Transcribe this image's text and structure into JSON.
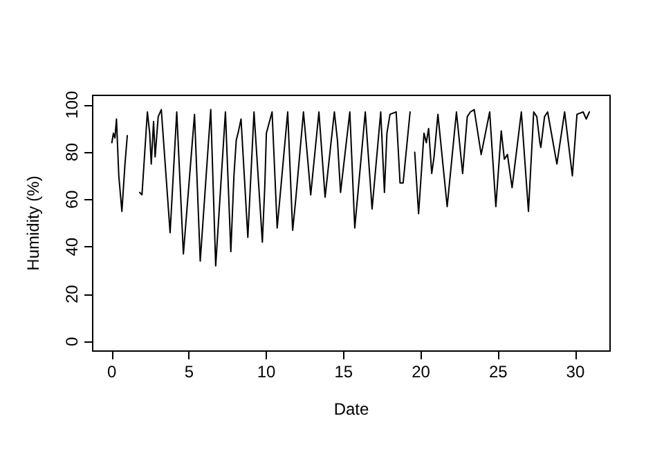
{
  "chart_data": {
    "type": "line",
    "xlabel": "Date",
    "ylabel": "Humidity (%)",
    "xlim": [
      -1.24,
      32.24
    ],
    "ylim": [
      -4,
      104
    ],
    "xticks": [
      0,
      5,
      10,
      15,
      20,
      25,
      30
    ],
    "yticks": [
      0,
      20,
      40,
      60,
      80,
      100
    ],
    "grid": false,
    "marker": "none",
    "line_style": "solid",
    "series": [
      {
        "color": "#000000",
        "x": [
          0,
          0.1,
          0.2,
          0.3,
          0.45,
          0.65,
          0.85,
          1.0,
          1.4,
          1.8,
          1.95,
          2.3,
          2.45,
          2.55,
          2.7,
          2.8,
          3.0,
          3.2,
          3.77,
          4.2,
          4.63,
          5.35,
          5.72,
          6.4,
          6.72,
          7.35,
          7.7,
          7.9,
          8.05,
          8.2,
          8.36,
          8.8,
          9.2,
          9.74,
          9.9,
          10.0,
          10.37,
          10.7,
          11.38,
          11.7,
          11.9,
          12.4,
          12.7,
          12.87,
          13.4,
          13.8,
          14.4,
          14.6,
          14.8,
          15.4,
          15.72,
          16.4,
          16.84,
          17.4,
          17.64,
          17.8,
          18.0,
          18.4,
          18.65,
          18.85,
          19.3,
          19.45,
          19.6,
          19.85,
          20.2,
          20.35,
          20.5,
          20.7,
          20.85,
          21.1,
          21.7,
          22.3,
          22.7,
          23.0,
          23.2,
          23.45,
          23.9,
          24.45,
          24.85,
          25.2,
          25.4,
          25.6,
          25.9,
          26.5,
          26.96,
          27.3,
          27.5,
          27.7,
          27.76,
          28.0,
          28.2,
          28.8,
          29.3,
          29.8,
          30.1,
          30.5,
          30.7,
          30.9
        ],
        "values": [
          84,
          88,
          86,
          94,
          70,
          55,
          75,
          87,
          null,
          63,
          62,
          97,
          88,
          75,
          93,
          78,
          95,
          98,
          46,
          97,
          37,
          96,
          34,
          98,
          32,
          97,
          38,
          70,
          85,
          89,
          94,
          44,
          97,
          42,
          66,
          88,
          97,
          48,
          97,
          47,
          60,
          97,
          75,
          62,
          97,
          61,
          97,
          85,
          63,
          97,
          48,
          97,
          56,
          97,
          63,
          88,
          96,
          97,
          67,
          67,
          97,
          null,
          80,
          54,
          88,
          84,
          90,
          71,
          78,
          96,
          57,
          97,
          71,
          95,
          97,
          98,
          79,
          97,
          57,
          89,
          77,
          79,
          65,
          97,
          55,
          97,
          95,
          84,
          82,
          95,
          97,
          75,
          97,
          70,
          96,
          97,
          94,
          97
        ]
      }
    ]
  }
}
